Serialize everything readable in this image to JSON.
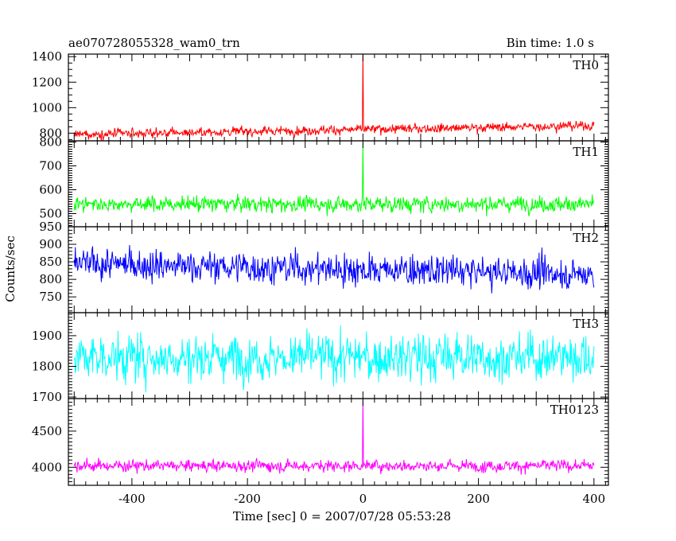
{
  "header": {
    "title": "ae070728055328_wam0_trn",
    "bin_time": "Bin time: 1.0 s"
  },
  "chart_data": {
    "type": "line",
    "title": "ae070728055328_wam0_trn",
    "xlabel": "Time [sec] 0 = 2007/07/28 05:53:28",
    "ylabel": "Counts/sec",
    "xlim": [
      -510,
      425
    ],
    "x_ticks": [
      -400,
      -200,
      0,
      200,
      400
    ],
    "x_range": [
      -500,
      400
    ],
    "grid": false,
    "panels": [
      {
        "name": "TH0",
        "color": "#ff0000",
        "ylim": [
          740,
          1420
        ],
        "y_ticks": [
          800,
          1000,
          1200,
          1400
        ],
        "baseline_start": 790,
        "baseline_end": 860,
        "noise": 30,
        "spike": {
          "x": 0,
          "value": 1450
        }
      },
      {
        "name": "TH1",
        "color": "#00ff00",
        "ylim": [
          445,
          805
        ],
        "y_ticks": [
          500,
          600,
          700,
          800
        ],
        "baseline_start": 540,
        "baseline_end": 540,
        "noise": 28,
        "spike": {
          "x": 0,
          "value": 800
        }
      },
      {
        "name": "TH2",
        "color": "#0000ff",
        "ylim": [
          705,
          950
        ],
        "y_ticks": [
          750,
          800,
          850,
          900,
          950
        ],
        "baseline_start": 845,
        "baseline_end": 815,
        "noise": 38,
        "spike": null
      },
      {
        "name": "TH3",
        "color": "#00ffff",
        "ylim": [
          1695,
          1975
        ],
        "y_ticks": [
          1700,
          1800,
          1900
        ],
        "baseline_start": 1830,
        "baseline_end": 1830,
        "noise": 65,
        "spike": null
      },
      {
        "name": "TH0123",
        "color": "#ff00ff",
        "ylim": [
          3750,
          4950
        ],
        "y_ticks": [
          4000,
          4500
        ],
        "baseline_start": 4020,
        "baseline_end": 4020,
        "noise": 70,
        "spike": {
          "x": 0,
          "value": 4950
        }
      }
    ]
  }
}
